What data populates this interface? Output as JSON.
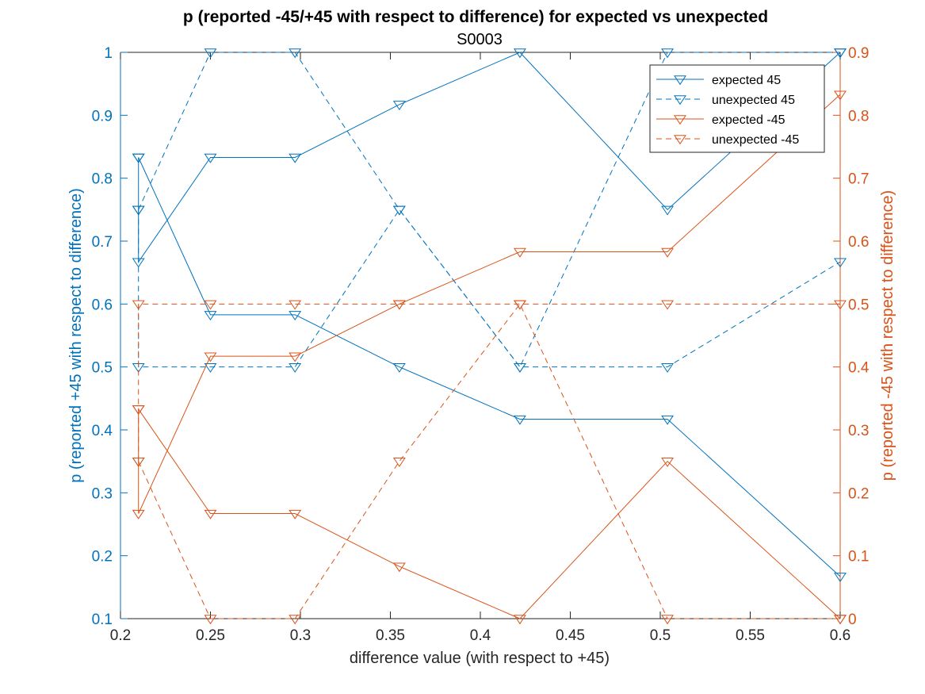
{
  "chart_data": {
    "type": "line",
    "title": "p (reported -45/+45 with respect to difference) for expected vs unexpected",
    "subtitle": "S0003",
    "xlabel": "difference value (with respect to +45)",
    "ylabel_left": "p (reported +45 with respect to difference)",
    "ylabel_right": "p (reported -45 with respect to difference)",
    "xlim": [
      0.2,
      0.6
    ],
    "ylim_left": [
      0.1,
      1.0
    ],
    "ylim_right": [
      0,
      0.9
    ],
    "xticks": [
      "0.2",
      "0.25",
      "0.3",
      "0.35",
      "0.4",
      "0.45",
      "0.5",
      "0.55",
      "0.6"
    ],
    "yticks_left": [
      "0.1",
      "0.2",
      "0.3",
      "0.4",
      "0.5",
      "0.6",
      "0.7",
      "0.8",
      "0.9",
      "1"
    ],
    "yticks_right": [
      "0",
      "0.1",
      "0.2",
      "0.3",
      "0.4",
      "0.5",
      "0.6",
      "0.7",
      "0.8",
      "0.9"
    ],
    "grid": false,
    "legend_position": "top-right",
    "colors": {
      "left": "#0072BD",
      "right": "#D95319"
    },
    "series": [
      {
        "name": "expected 45",
        "axis": "left",
        "style": "solid",
        "color": "#0072BD",
        "x": [
          0.21,
          0.21,
          0.25,
          0.297,
          0.355,
          0.422,
          0.504,
          0.6
        ],
        "y": [
          0.833,
          0.667,
          0.833,
          0.833,
          0.917,
          1.0,
          0.75,
          1.0
        ]
      },
      {
        "name": "expected 45",
        "axis": "left",
        "style": "solid",
        "color": "#0072BD",
        "x": [
          0.21,
          0.25,
          0.297,
          0.355,
          0.422,
          0.504,
          0.6
        ],
        "y": [
          0.833,
          0.583,
          0.583,
          0.5,
          0.417,
          0.417,
          0.167
        ]
      },
      {
        "name": "unexpected 45",
        "axis": "left",
        "style": "dashed",
        "color": "#0072BD",
        "x": [
          0.21,
          0.25,
          0.297,
          0.355,
          0.422,
          0.504,
          0.6
        ],
        "y": [
          0.75,
          1.0,
          1.0,
          0.75,
          0.5,
          1.0,
          1.0
        ]
      },
      {
        "name": "unexpected 45",
        "axis": "left",
        "style": "dashed",
        "color": "#0072BD",
        "x": [
          0.21,
          0.21,
          0.25,
          0.297,
          0.355,
          0.422,
          0.504,
          0.6
        ],
        "y": [
          0.75,
          0.5,
          0.5,
          0.5,
          0.75,
          0.5,
          0.5,
          0.667
        ]
      },
      {
        "name": "expected -45",
        "axis": "right",
        "style": "solid",
        "color": "#D95319",
        "x": [
          0.21,
          0.21,
          0.25,
          0.297,
          0.355,
          0.422,
          0.504,
          0.6
        ],
        "y": [
          0.333,
          0.167,
          0.417,
          0.417,
          0.5,
          0.583,
          0.583,
          0.833
        ]
      },
      {
        "name": "expected -45",
        "axis": "right",
        "style": "solid",
        "color": "#D95319",
        "x": [
          0.21,
          0.25,
          0.297,
          0.355,
          0.422,
          0.504,
          0.6
        ],
        "y": [
          0.333,
          0.167,
          0.167,
          0.083,
          0.0,
          0.25,
          0.0
        ]
      },
      {
        "name": "unexpected -45",
        "axis": "right",
        "style": "dashed",
        "color": "#D95319",
        "x": [
          0.21,
          0.21,
          0.25,
          0.297,
          0.355,
          0.422,
          0.504,
          0.6
        ],
        "y": [
          0.25,
          0.5,
          0.5,
          0.5,
          0.5,
          0.5,
          0.5,
          0.5
        ]
      },
      {
        "name": "unexpected -45",
        "axis": "right",
        "style": "dashed",
        "color": "#D95319",
        "x": [
          0.21,
          0.25,
          0.297,
          0.355,
          0.422,
          0.504,
          0.6
        ],
        "y": [
          0.25,
          0.0,
          0.0,
          0.25,
          0.5,
          0.0,
          0.0
        ]
      }
    ],
    "legend": [
      {
        "label": "expected 45",
        "color": "#0072BD",
        "style": "solid"
      },
      {
        "label": "unexpected 45",
        "color": "#0072BD",
        "style": "dashed"
      },
      {
        "label": "expected -45",
        "color": "#D95319",
        "style": "solid"
      },
      {
        "label": "unexpected -45",
        "color": "#D95319",
        "style": "dashed"
      }
    ]
  }
}
